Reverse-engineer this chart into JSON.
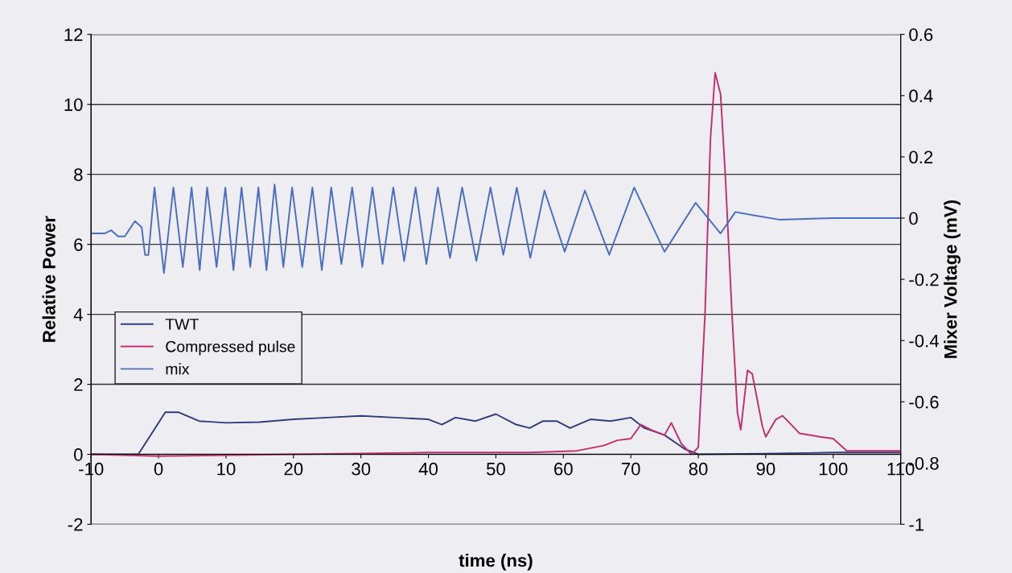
{
  "chart_data": {
    "type": "line",
    "xlabel": "time (ns)",
    "ylabel": "Relative Power",
    "y2label": "Mixer Voltage (mV)",
    "xlim": [
      -10,
      110
    ],
    "xticks": [
      -10,
      0,
      10,
      20,
      30,
      40,
      50,
      60,
      70,
      80,
      90,
      100,
      110
    ],
    "ylim": [
      -2,
      12
    ],
    "yticks": [
      -2,
      0,
      2,
      4,
      6,
      8,
      10,
      12
    ],
    "y2lim": [
      -1,
      0.6
    ],
    "y2ticks": [
      -1,
      -0.8,
      -0.6,
      -0.4,
      -0.2,
      0,
      0.2,
      0.4,
      0.6
    ],
    "grid": "y",
    "legend": "center left",
    "marker": "none",
    "line_style": "solid",
    "series": [
      {
        "name": "TWT",
        "color": "#2e3d7a",
        "x": [
          -10,
          -3,
          -1,
          1,
          3,
          6,
          10,
          15,
          20,
          25,
          30,
          35,
          40,
          42,
          44,
          47,
          50,
          53,
          55,
          57,
          59,
          61,
          64,
          67,
          70,
          72,
          75,
          78,
          80,
          90,
          100,
          110
        ],
        "values": [
          0,
          0,
          0.6,
          1.2,
          1.2,
          0.95,
          0.9,
          0.92,
          1.0,
          1.05,
          1.1,
          1.05,
          1.0,
          0.85,
          1.05,
          0.95,
          1.15,
          0.85,
          0.75,
          0.95,
          0.95,
          0.75,
          1.0,
          0.95,
          1.05,
          0.75,
          0.55,
          0.15,
          0.0,
          0.02,
          0.05,
          0.05
        ]
      },
      {
        "name": "Compressed pulse",
        "color": "#c03070",
        "x": [
          -10,
          0,
          20,
          40,
          55,
          62,
          66,
          68,
          70,
          71.5,
          73,
          75,
          76,
          77.5,
          79,
          80,
          81,
          81.8,
          82.5,
          83.3,
          84,
          85,
          85.8,
          86.3,
          87.3,
          88,
          89.5,
          90,
          91.5,
          92.5,
          95,
          98,
          100,
          102,
          110
        ],
        "values": [
          0,
          -0.05,
          0,
          0.05,
          0.05,
          0.1,
          0.25,
          0.4,
          0.45,
          0.85,
          0.7,
          0.55,
          0.9,
          0.3,
          0.0,
          0.2,
          4,
          9,
          10.9,
          10.3,
          8,
          4,
          1.2,
          0.7,
          2.4,
          2.3,
          0.8,
          0.5,
          1.0,
          1.1,
          0.6,
          0.5,
          0.45,
          0.1,
          0.1
        ]
      },
      {
        "name": "mix",
        "color": "#4a6fc0",
        "axis": "y2",
        "x": [
          -10,
          -8,
          -7,
          -6,
          -5,
          -3.5,
          -2.5,
          -2,
          -1.5,
          -0.6,
          0.8,
          2.2,
          3.6,
          4.9,
          6.1,
          7.2,
          8.6,
          9.9,
          11.1,
          12.3,
          13.6,
          14.8,
          16.0,
          17.2,
          18.5,
          19.8,
          21.3,
          22.8,
          24.2,
          25.6,
          27.1,
          28.7,
          30.2,
          31.7,
          33.2,
          34.8,
          36.4,
          38.1,
          39.7,
          41.4,
          43.2,
          45.0,
          47.1,
          49.2,
          51.1,
          53.1,
          55.1,
          57.2,
          60.2,
          63.2,
          66.8,
          70.5,
          75,
          79.6,
          83.3,
          85.5,
          88,
          92,
          100,
          110
        ],
        "values": [
          -0.05,
          -0.05,
          -0.04,
          -0.06,
          -0.06,
          -0.01,
          -0.03,
          -0.12,
          -0.12,
          0.1,
          -0.18,
          0.1,
          -0.16,
          0.1,
          -0.17,
          0.1,
          -0.16,
          0.1,
          -0.17,
          0.1,
          -0.16,
          0.1,
          -0.17,
          0.11,
          -0.16,
          0.1,
          -0.16,
          0.1,
          -0.17,
          0.1,
          -0.15,
          0.1,
          -0.16,
          0.1,
          -0.15,
          0.1,
          -0.14,
          0.1,
          -0.15,
          0.1,
          -0.13,
          0.1,
          -0.14,
          0.1,
          -0.12,
          0.1,
          -0.13,
          0.09,
          -0.11,
          0.09,
          -0.12,
          0.1,
          -0.11,
          0.05,
          -0.05,
          0.02,
          0.01,
          -0.005,
          0.0,
          0.0
        ]
      }
    ]
  }
}
